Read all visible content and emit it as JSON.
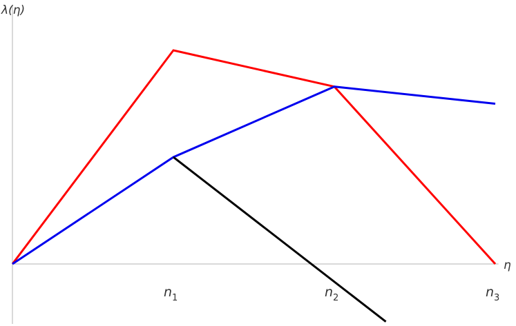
{
  "chart_data": {
    "type": "line",
    "xlabel": "η",
    "ylabel": "λ(η)",
    "x_ticks": [
      {
        "value": 1,
        "base": "n",
        "sub": "1"
      },
      {
        "value": 2,
        "base": "n",
        "sub": "2"
      },
      {
        "value": 3,
        "base": "n",
        "sub": "3"
      }
    ],
    "xlim": [
      0,
      3.02
    ],
    "ylim": [
      -0.27,
      1.21
    ],
    "grid": false,
    "legend": "none",
    "series": [
      {
        "color": "#ff0000",
        "x": [
          0,
          1,
          2,
          3
        ],
        "y": [
          0,
          1.0,
          0.83,
          0
        ]
      },
      {
        "color": "#0000ee",
        "x": [
          0,
          1,
          2,
          3
        ],
        "y": [
          0,
          0.5,
          0.83,
          0.75
        ]
      },
      {
        "color": "#000000",
        "x": [
          1,
          2.32
        ],
        "y": [
          0.5,
          -0.27
        ]
      }
    ]
  }
}
